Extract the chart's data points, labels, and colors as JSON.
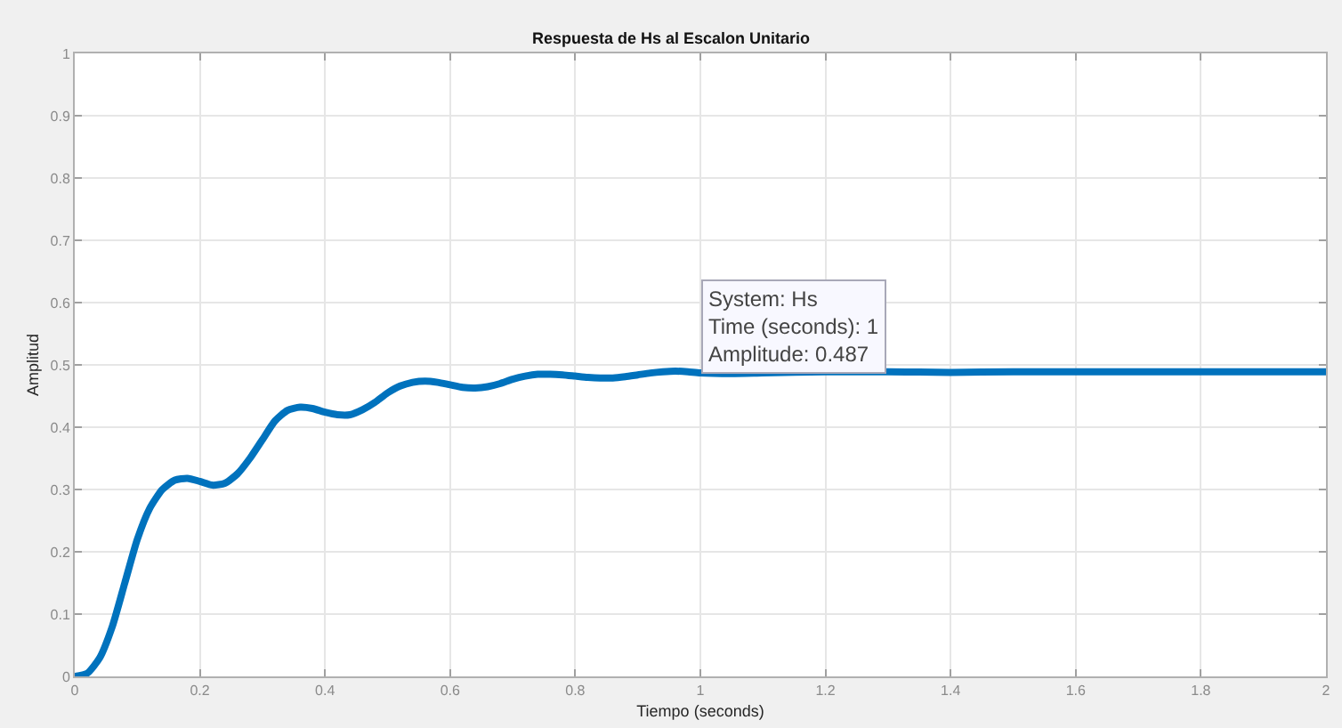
{
  "chart_data": {
    "type": "line",
    "title": "Respuesta de Hs al Escalon Unitario",
    "xlabel": "Tiempo (seconds)",
    "ylabel": "Amplitud",
    "x": [
      0,
      0.02,
      0.04,
      0.06,
      0.08,
      0.1,
      0.12,
      0.14,
      0.16,
      0.18,
      0.2,
      0.22,
      0.24,
      0.26,
      0.28,
      0.3,
      0.32,
      0.34,
      0.36,
      0.38,
      0.4,
      0.42,
      0.44,
      0.46,
      0.48,
      0.5,
      0.52,
      0.54,
      0.56,
      0.58,
      0.6,
      0.62,
      0.64,
      0.66,
      0.68,
      0.7,
      0.72,
      0.74,
      0.76,
      0.78,
      0.8,
      0.82,
      0.84,
      0.86,
      0.88,
      0.9,
      0.92,
      0.94,
      0.96,
      0.98,
      1,
      1.05,
      1.1,
      1.2,
      1.3,
      1.4,
      1.5,
      1.6,
      1.8,
      2
    ],
    "series": [
      {
        "color": "#0072bd",
        "values": [
          0,
          0.005,
          0.03,
          0.08,
          0.15,
          0.22,
          0.27,
          0.3,
          0.315,
          0.318,
          0.313,
          0.307,
          0.31,
          0.325,
          0.35,
          0.38,
          0.41,
          0.427,
          0.432,
          0.43,
          0.424,
          0.42,
          0.42,
          0.428,
          0.44,
          0.455,
          0.466,
          0.472,
          0.474,
          0.472,
          0.468,
          0.464,
          0.463,
          0.465,
          0.47,
          0.477,
          0.482,
          0.485,
          0.485,
          0.484,
          0.482,
          0.48,
          0.479,
          0.479,
          0.481,
          0.484,
          0.487,
          0.489,
          0.49,
          0.489,
          0.487,
          0.486,
          0.487,
          0.489,
          0.489,
          0.488,
          0.489,
          0.489,
          0.489,
          0.489
        ]
      }
    ],
    "xlim": [
      0,
      2
    ],
    "xticks": [
      0,
      0.2,
      0.4,
      0.6,
      0.8,
      1,
      1.2,
      1.4,
      1.6,
      1.8,
      2
    ],
    "ylim": [
      0,
      1
    ],
    "yticks": [
      0,
      0.1,
      0.2,
      0.3,
      0.4,
      0.5,
      0.6,
      0.7,
      0.8,
      0.9,
      1
    ],
    "grid": true,
    "line_style": "solid",
    "annotations": [
      {
        "text": "System: Hs\nTime (seconds): 1\nAmplitude: 0.487",
        "x": 1,
        "y": 0.487
      }
    ]
  }
}
